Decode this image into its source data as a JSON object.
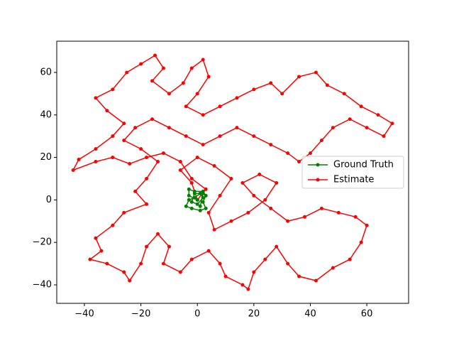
{
  "chart_data": {
    "type": "line",
    "xlim": [
      -49.8,
      74.8
    ],
    "ylim": [
      -48.7,
      74.7
    ],
    "xticks": [
      {
        "value": -40,
        "label": "−40"
      },
      {
        "value": -20,
        "label": "−20"
      },
      0,
      20,
      40,
      60
    ],
    "yticks": [
      {
        "value": -40,
        "label": "−40"
      },
      {
        "value": -20,
        "label": "−20"
      },
      0,
      20,
      40,
      60
    ],
    "legend": "center right",
    "series": [
      {
        "name": "Ground Truth",
        "color": "#008000",
        "x": [
          0,
          -3,
          -3,
          -1,
          2,
          3,
          2,
          3,
          1,
          -2,
          -4,
          -3,
          -1,
          1,
          2,
          0,
          -2,
          -1,
          2,
          1
        ],
        "values": [
          0,
          2,
          5,
          4,
          4,
          2,
          -1,
          -4,
          -5,
          -4,
          -3,
          0,
          1,
          3,
          1,
          -2,
          -1,
          3,
          3,
          -3
        ]
      },
      {
        "name": "Estimate",
        "color": "#ff0000",
        "x": [
          0,
          3,
          -2,
          -6,
          -12,
          -18,
          -24,
          -30,
          -36,
          -44,
          -42,
          -36,
          -30,
          -26,
          -32,
          -36,
          -30,
          -25,
          -20,
          -15,
          -12,
          -16,
          -10,
          -5,
          -2,
          2,
          4,
          0,
          -4,
          2,
          8,
          14,
          20,
          26,
          30,
          36,
          42,
          46,
          52,
          58,
          64,
          69,
          66,
          60,
          54,
          48,
          44,
          40,
          36,
          32,
          26,
          20,
          14,
          8,
          2,
          -4,
          -10,
          -16,
          -22,
          -26,
          -20,
          -14,
          -18,
          -22,
          -18,
          -26,
          -30,
          -36,
          -34,
          -38,
          -32,
          -26,
          -24,
          -20,
          -18,
          -14,
          -10,
          -12,
          -6,
          -2,
          4,
          8,
          10,
          16,
          18,
          20,
          24,
          28,
          32,
          36,
          42,
          48,
          54,
          58,
          60,
          56,
          50,
          44,
          38,
          32,
          26,
          20,
          16,
          22,
          28,
          24,
          18,
          12,
          6,
          4,
          8,
          12,
          6,
          0,
          -6,
          -2,
          0
        ],
        "values": [
          0,
          5,
          10,
          18,
          22,
          20,
          17,
          20,
          18,
          14,
          19,
          24,
          30,
          36,
          42,
          48,
          52,
          60,
          64,
          68,
          62,
          56,
          50,
          55,
          62,
          66,
          58,
          50,
          44,
          40,
          44,
          48,
          52,
          55,
          50,
          58,
          60,
          54,
          50,
          44,
          40,
          36,
          30,
          34,
          38,
          34,
          28,
          22,
          18,
          22,
          26,
          30,
          34,
          30,
          26,
          30,
          34,
          38,
          34,
          28,
          24,
          18,
          10,
          4,
          -2,
          -6,
          -12,
          -18,
          -24,
          -28,
          -30,
          -34,
          -38,
          -30,
          -22,
          -16,
          -22,
          -30,
          -34,
          -28,
          -24,
          -30,
          -36,
          -40,
          -42,
          -34,
          -28,
          -22,
          -30,
          -36,
          -38,
          -32,
          -28,
          -20,
          -12,
          -8,
          -6,
          -4,
          -8,
          -10,
          -4,
          2,
          8,
          12,
          8,
          0,
          -6,
          -10,
          -14,
          -6,
          2,
          10,
          16,
          20,
          14,
          8,
          0
        ]
      }
    ]
  }
}
